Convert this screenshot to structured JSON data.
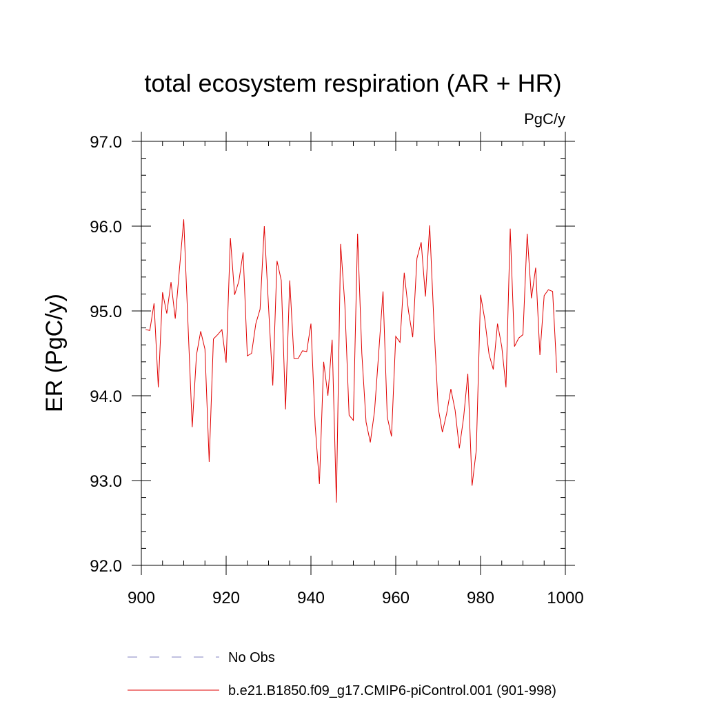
{
  "chart_data": {
    "type": "line",
    "title": "total ecosystem respiration (AR + HR)",
    "units": "PgC/y",
    "xlabel": "",
    "ylabel": "ER  (PgC/y)",
    "xlim": [
      900,
      1000
    ],
    "ylim": [
      92.0,
      97.0
    ],
    "x_ticks": [
      900,
      920,
      940,
      960,
      980,
      1000
    ],
    "x_tick_labels": [
      "900",
      "920",
      "940",
      "960",
      "980",
      "1000"
    ],
    "y_ticks": [
      92.0,
      93.0,
      94.0,
      95.0,
      96.0,
      97.0
    ],
    "y_tick_labels": [
      "92.0",
      "93.0",
      "94.0",
      "95.0",
      "96.0",
      "97.0"
    ],
    "grid": false,
    "legend_position": "bottom",
    "series": [
      {
        "name": "No Obs",
        "color": "#8080c0",
        "dash": "dashed",
        "x": [],
        "y": []
      },
      {
        "name": "b.e21.B1850.f09_g17.CMIP6-piControl.001 (901-998)",
        "color": "#e00000",
        "dash": "solid",
        "x": [
          901,
          902,
          903,
          904,
          905,
          906,
          907,
          908,
          909,
          910,
          911,
          912,
          913,
          914,
          915,
          916,
          917,
          918,
          919,
          920,
          921,
          922,
          923,
          924,
          925,
          926,
          927,
          928,
          929,
          930,
          931,
          932,
          933,
          934,
          935,
          936,
          937,
          938,
          939,
          940,
          941,
          942,
          943,
          944,
          945,
          946,
          947,
          948,
          949,
          950,
          951,
          952,
          953,
          954,
          955,
          956,
          957,
          958,
          959,
          960,
          961,
          962,
          963,
          964,
          965,
          966,
          967,
          968,
          969,
          970,
          971,
          972,
          973,
          974,
          975,
          976,
          977,
          978,
          979,
          980,
          981,
          982,
          983,
          984,
          985,
          986,
          987,
          988,
          989,
          990,
          991,
          992,
          993,
          994,
          995,
          996,
          997,
          998
        ],
        "y": [
          94.78,
          94.77,
          95.09,
          94.1,
          95.22,
          94.97,
          95.34,
          94.91,
          95.5,
          96.08,
          94.85,
          93.63,
          94.48,
          94.76,
          94.55,
          93.22,
          94.67,
          94.72,
          94.78,
          94.39,
          95.86,
          95.19,
          95.35,
          95.69,
          94.47,
          94.5,
          94.85,
          95.02,
          96.0,
          95.05,
          94.12,
          95.59,
          95.36,
          93.84,
          95.36,
          94.44,
          94.44,
          94.53,
          94.52,
          94.85,
          93.65,
          92.96,
          94.4,
          94.0,
          94.66,
          92.74,
          95.79,
          95.07,
          93.77,
          93.71,
          95.91,
          94.5,
          93.69,
          93.45,
          93.82,
          94.52,
          95.23,
          93.75,
          93.52,
          94.7,
          94.63,
          95.45,
          95.0,
          94.69,
          95.62,
          95.81,
          95.17,
          96.01,
          94.86,
          93.86,
          93.57,
          93.79,
          94.08,
          93.83,
          93.38,
          93.74,
          94.26,
          92.94,
          93.36,
          95.19,
          94.9,
          94.49,
          94.31,
          94.85,
          94.58,
          94.1,
          95.97,
          94.58,
          94.68,
          94.72,
          95.91,
          95.15,
          95.51,
          94.48,
          95.18,
          95.25,
          95.23,
          94.27
        ]
      }
    ]
  }
}
